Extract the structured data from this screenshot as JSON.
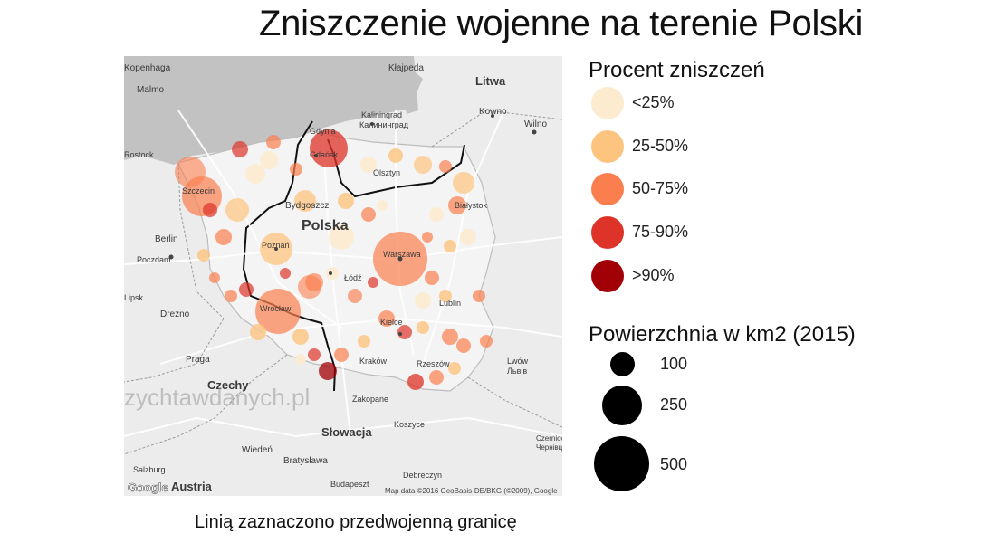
{
  "title": "Zniszczenie wojenne na terenie Polski",
  "caption": "Linią zaznaczono przedwojenną granicę",
  "legend_damage": {
    "title": "Procent zniszczeń",
    "items": [
      {
        "label": "<25%",
        "color": "#fdebcf"
      },
      {
        "label": "25-50%",
        "color": "#fdc47f"
      },
      {
        "label": "50-75%",
        "color": "#fb7f4e"
      },
      {
        "label": "75-90%",
        "color": "#dd3328"
      },
      {
        "label": ">90%",
        "color": "#a10006"
      }
    ]
  },
  "legend_size": {
    "title": "Powierzchnia w km2 (2015)",
    "items": [
      {
        "label": "100",
        "value": 100
      },
      {
        "label": "250",
        "value": 250
      },
      {
        "label": "500",
        "value": 500
      }
    ]
  },
  "map": {
    "watermark": "zychtawdanych.pl",
    "attribution": "Map data ©2016 GeoBasis-DE/BKG (©2009), Google",
    "logo": "Google",
    "labels": [
      {
        "text": "Kłajpeda",
        "kind": "city"
      },
      {
        "text": "Litwa",
        "kind": "country"
      },
      {
        "text": "Kowno",
        "kind": "city"
      },
      {
        "text": "Kaliningrad",
        "kind": "city"
      },
      {
        "text": "Калининград",
        "kind": "city"
      },
      {
        "text": "Wilno",
        "kind": "city"
      },
      {
        "text": "Gdynia",
        "kind": "city"
      },
      {
        "text": "Gdańsk",
        "kind": "city"
      },
      {
        "text": "Olsztyn",
        "kind": "city"
      },
      {
        "text": "Szczecin",
        "kind": "city"
      },
      {
        "text": "Bydgoszcz",
        "kind": "city"
      },
      {
        "text": "Białystok",
        "kind": "city"
      },
      {
        "text": "Polska",
        "kind": "country"
      },
      {
        "text": "Berlin",
        "kind": "city"
      },
      {
        "text": "Poczdam",
        "kind": "city"
      },
      {
        "text": "Poznań",
        "kind": "city"
      },
      {
        "text": "Warszawa",
        "kind": "city"
      },
      {
        "text": "Łódź",
        "kind": "city"
      },
      {
        "text": "Lipsk",
        "kind": "city"
      },
      {
        "text": "Drezno",
        "kind": "city"
      },
      {
        "text": "Wrocław",
        "kind": "city"
      },
      {
        "text": "Lublin",
        "kind": "city"
      },
      {
        "text": "Kielce",
        "kind": "city"
      },
      {
        "text": "Praga",
        "kind": "city"
      },
      {
        "text": "Kraków",
        "kind": "city"
      },
      {
        "text": "Rzeszów",
        "kind": "city"
      },
      {
        "text": "Lwów",
        "kind": "city"
      },
      {
        "text": "Львів",
        "kind": "city"
      },
      {
        "text": "Czechy",
        "kind": "country"
      },
      {
        "text": "Zakopane",
        "kind": "city"
      },
      {
        "text": "Słowacja",
        "kind": "country"
      },
      {
        "text": "Koszyce",
        "kind": "city"
      },
      {
        "text": "Czerniowce",
        "kind": "city"
      },
      {
        "text": "Чернівці",
        "kind": "city"
      },
      {
        "text": "Wiedeń",
        "kind": "city"
      },
      {
        "text": "Bratysława",
        "kind": "city"
      },
      {
        "text": "Salzburg",
        "kind": "city"
      },
      {
        "text": "Austria",
        "kind": "country"
      },
      {
        "text": "Budapeszt",
        "kind": "city"
      },
      {
        "text": "Debreczyn",
        "kind": "city"
      },
      {
        "text": "Kopenhaga",
        "kind": "city"
      },
      {
        "text": "Malmo",
        "kind": "city"
      },
      {
        "text": "Rostock",
        "kind": "city"
      }
    ],
    "bubbles": [
      {
        "city": "Warszawa",
        "damage": 3,
        "area": 517
      },
      {
        "city": "Gdańsk",
        "damage": 4,
        "area": 262
      },
      {
        "city": "Szczecin",
        "damage": 3,
        "area": 301
      },
      {
        "city": "Wrocław",
        "damage": 3,
        "area": 293
      },
      {
        "city": "Poznań",
        "damage": 2,
        "area": 262
      }
    ]
  }
}
